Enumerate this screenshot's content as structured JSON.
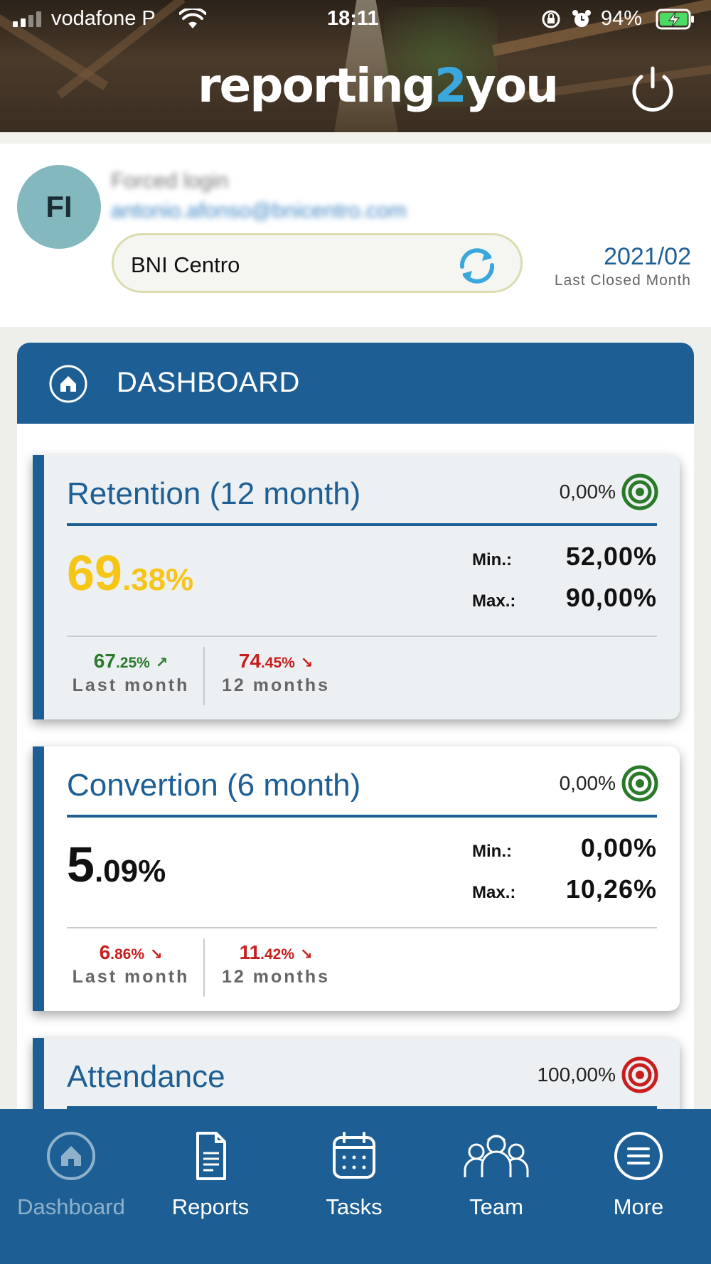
{
  "status_bar": {
    "carrier": "vodafone P",
    "time": "18:11",
    "battery": "94%"
  },
  "header": {
    "logo_pre": "reporting",
    "logo_two": "2",
    "logo_post": "you",
    "power_icon": "power-icon"
  },
  "profile": {
    "initials": "FI",
    "name": "Forced login",
    "email": "antonio.afonso@bnicentro.com",
    "chapter": "BNI Centro",
    "closed_month": "2021/02",
    "closed_month_label": "Last Closed Month"
  },
  "dashboard": {
    "title": "DASHBOARD",
    "cards": [
      {
        "title": "Retention (12 month)",
        "target": "0,00%",
        "target_status": "green",
        "value_int": "69",
        "value_dec": ".38%",
        "value_color": "#f5c518",
        "min_label": "Min.:",
        "min": "52,00%",
        "max_label": "Max.:",
        "max": "90,00%",
        "last_month_int": "67",
        "last_month_dec": ".25%",
        "last_month_arrow": "↗",
        "last_month_label": "Last month",
        "twelve_int": "74",
        "twelve_dec": ".45%",
        "twelve_arrow": "↘",
        "twelve_label": "12 months"
      },
      {
        "title": "Convertion (6 month)",
        "target": "0,00%",
        "target_status": "green",
        "value_int": "5",
        "value_dec": ".09%",
        "value_color": "#111111",
        "min_label": "Min.:",
        "min": "0,00%",
        "max_label": "Max.:",
        "max": "10,26%",
        "last_month_int": "6",
        "last_month_dec": ".86%",
        "last_month_arrow": "↘",
        "last_month_label": "Last month",
        "twelve_int": "11",
        "twelve_dec": ".42%",
        "twelve_arrow": "↘",
        "twelve_label": "12 months"
      },
      {
        "title": "Attendance",
        "target": "100,00%",
        "target_status": "red"
      }
    ]
  },
  "nav": {
    "items": [
      {
        "label": "Dashboard",
        "icon": "home-icon",
        "active": true
      },
      {
        "label": "Reports",
        "icon": "document-icon"
      },
      {
        "label": "Tasks",
        "icon": "calendar-icon"
      },
      {
        "label": "Team",
        "icon": "team-icon"
      },
      {
        "label": "More",
        "icon": "menu-icon"
      }
    ]
  },
  "colors": {
    "primary": "#1d5f95",
    "accent": "#3aa8dc",
    "positive": "#2a7a2a",
    "negative": "#c81e1e",
    "highlight": "#f5c518"
  }
}
